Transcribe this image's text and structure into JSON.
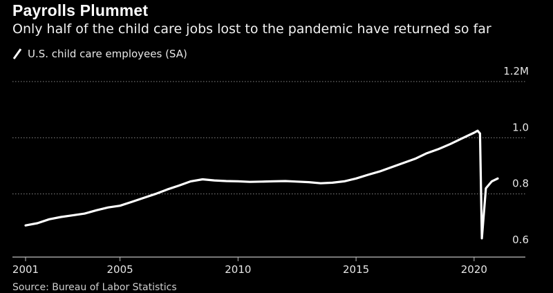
{
  "header": {
    "title": "Payrolls Plummet",
    "subtitle": "Only half of the child care jobs lost to the pandemic have returned so far"
  },
  "footer": {
    "source": "Source: Bureau of Labor Statistics"
  },
  "colors": {
    "background": "#000000",
    "line": "#ffffff",
    "grid": "#8a8a8a",
    "axis": "#bfbfbf"
  },
  "chart_data": {
    "type": "line",
    "title": "Payrolls Plummet",
    "subtitle": "Only half of the child care jobs lost to the pandemic have returned so far",
    "xlabel": "",
    "ylabel": "",
    "xlim": [
      2001,
      2022
    ],
    "ylim": [
      0.6,
      1.2
    ],
    "x_ticks": [
      2001,
      2005,
      2010,
      2015,
      2020
    ],
    "x_tick_labels": [
      "2001",
      "2005",
      "2010",
      "2015",
      "2020"
    ],
    "y_ticks": [
      0.6,
      0.8,
      1.0,
      1.2
    ],
    "y_tick_labels": [
      "0.6",
      "0.8",
      "1.0",
      "1.2M"
    ],
    "grid": "horizontal dotted",
    "legend": "top-left",
    "series": [
      {
        "name": "U.S. child care employees (SA)",
        "x": [
          2001.0,
          2001.5,
          2002.0,
          2002.5,
          2003.0,
          2003.5,
          2004.0,
          2004.5,
          2005.0,
          2005.5,
          2006.0,
          2006.5,
          2007.0,
          2007.5,
          2008.0,
          2008.5,
          2009.0,
          2009.5,
          2010.0,
          2010.5,
          2011.0,
          2011.5,
          2012.0,
          2012.5,
          2013.0,
          2013.5,
          2014.0,
          2014.5,
          2015.0,
          2015.5,
          2016.0,
          2016.5,
          2017.0,
          2017.5,
          2018.0,
          2018.5,
          2019.0,
          2019.5,
          2020.0,
          2020.15,
          2020.25,
          2020.33,
          2020.5,
          2020.75,
          2021.0
        ],
        "values": [
          0.688,
          0.696,
          0.71,
          0.718,
          0.724,
          0.73,
          0.742,
          0.752,
          0.758,
          0.772,
          0.786,
          0.8,
          0.816,
          0.83,
          0.845,
          0.852,
          0.848,
          0.846,
          0.845,
          0.843,
          0.844,
          0.845,
          0.846,
          0.844,
          0.842,
          0.838,
          0.84,
          0.845,
          0.855,
          0.868,
          0.88,
          0.895,
          0.91,
          0.925,
          0.945,
          0.96,
          0.978,
          0.998,
          1.018,
          1.025,
          1.015,
          0.642,
          0.82,
          0.845,
          0.855
        ]
      }
    ]
  }
}
